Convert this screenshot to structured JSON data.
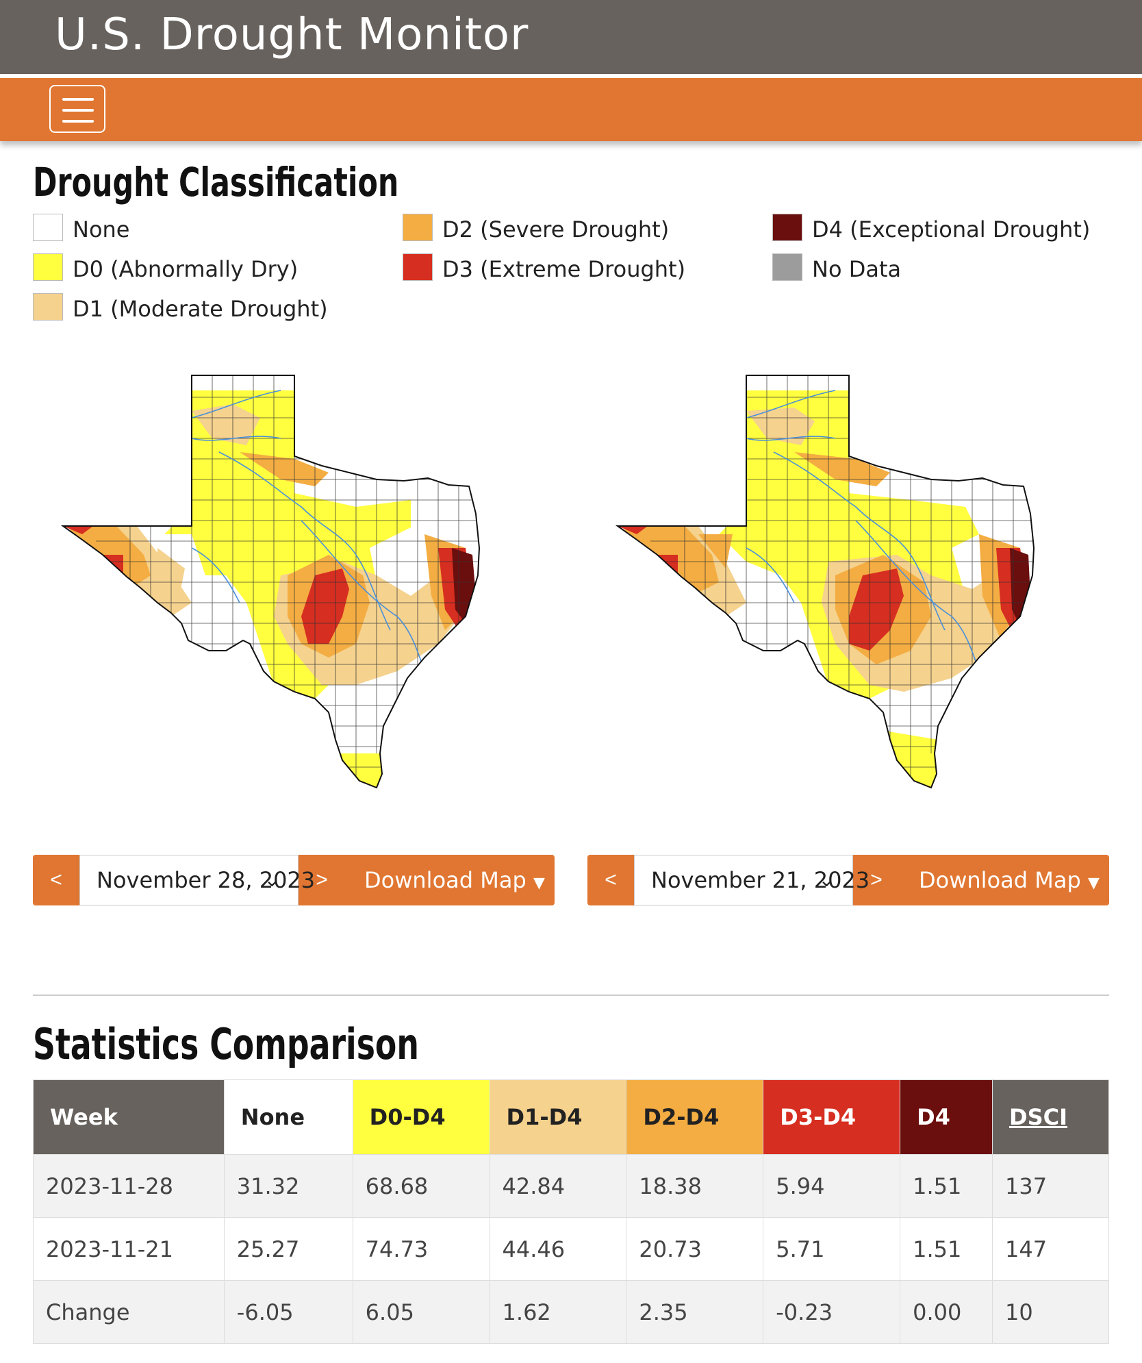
{
  "header": {
    "title": "U.S. Drought Monitor"
  },
  "legend": {
    "title": "Drought Classification",
    "items": [
      {
        "label": "None",
        "color": "#ffffff"
      },
      {
        "label": "D0 (Abnormally Dry)",
        "color": "#ffff3f"
      },
      {
        "label": "D1 (Moderate Drought)",
        "color": "#f5d28e"
      },
      {
        "label": "D2 (Severe Drought)",
        "color": "#f4ad42"
      },
      {
        "label": "D3 (Extreme Drought)",
        "color": "#d62e20"
      },
      {
        "label": "D4 (Exceptional Drought)",
        "color": "#6b0e0e"
      },
      {
        "label": "No Data",
        "color": "#9c9c9c"
      }
    ]
  },
  "maps": [
    {
      "date": "November 28, 2023",
      "prev": "<",
      "next": ">",
      "download": "Download Map"
    },
    {
      "date": "November 21, 2023",
      "prev": "<",
      "next": ">",
      "download": "Download Map"
    }
  ],
  "stats": {
    "title": "Statistics Comparison",
    "columns": [
      "Week",
      "None",
      "D0-D4",
      "D1-D4",
      "D2-D4",
      "D3-D4",
      "D4",
      "DSCI"
    ],
    "header_colors": [
      "#67625d",
      "#ffffff",
      "#ffff3f",
      "#f5d28e",
      "#f4ad42",
      "#d62e20",
      "#6b0e0e",
      "#67625d"
    ],
    "rows": [
      [
        "2023-11-28",
        "31.32",
        "68.68",
        "42.84",
        "18.38",
        "5.94",
        "1.51",
        "137"
      ],
      [
        "2023-11-21",
        "25.27",
        "74.73",
        "44.46",
        "20.73",
        "5.71",
        "1.51",
        "147"
      ],
      [
        "Change",
        "-6.05",
        "6.05",
        "1.62",
        "2.35",
        "-0.23",
        "0.00",
        "10"
      ]
    ]
  }
}
